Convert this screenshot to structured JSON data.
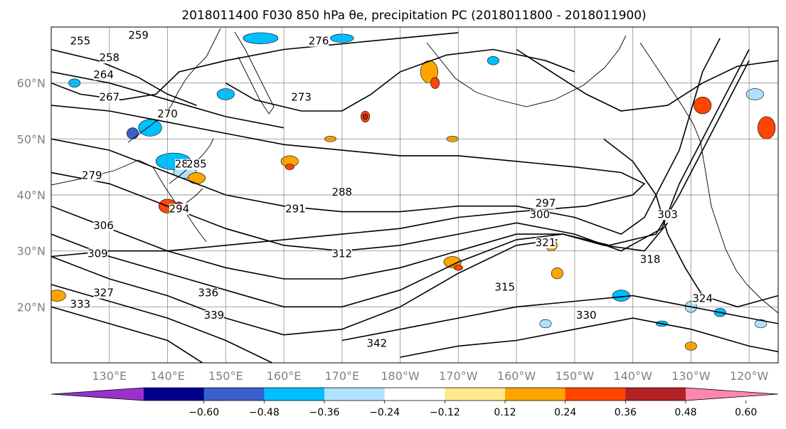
{
  "chart_data": {
    "type": "heatmap",
    "title": "2018011400 F030 850 hPa θe, precipitation PC (2018011800 - 2018011900)",
    "map": {
      "lon_range_east": [
        120,
        245
      ],
      "lat_range": [
        10,
        70
      ],
      "x_ticks": [
        "130°E",
        "140°E",
        "150°E",
        "160°E",
        "170°E",
        "180°W",
        "170°W",
        "160°W",
        "150°W",
        "140°W",
        "130°W",
        "120°W"
      ],
      "y_ticks": [
        "20°N",
        "30°N",
        "40°N",
        "50°N",
        "60°N"
      ],
      "grid": true
    },
    "colorbar": {
      "levels": [
        -0.72,
        -0.6,
        -0.48,
        -0.36,
        -0.24,
        -0.12,
        0.12,
        0.24,
        0.36,
        0.48,
        0.6,
        0.72
      ],
      "tick_labels": [
        "−0.60",
        "−0.48",
        "−0.36",
        "−0.24",
        "−0.12",
        "0.12",
        "0.24",
        "0.36",
        "0.48",
        "0.60"
      ],
      "colors": [
        "#9932cc",
        "#00008b",
        "#3a5fcd",
        "#00bfff",
        "#b0e2ff",
        "#ffffff",
        "#ffe98a",
        "#ffa500",
        "#ff4500",
        "#b22222",
        "#ff86b0"
      ],
      "extend": "both",
      "under_color": "#9932cc",
      "over_color": "#ff86b0"
    },
    "theta_e_contour_labels": [
      "255",
      "259",
      "258",
      "264",
      "267",
      "270",
      "273",
      "276",
      "279",
      "282",
      "285",
      "288",
      "291",
      "294",
      "297",
      "300",
      "303",
      "306",
      "309",
      "312",
      "315",
      "318",
      "321",
      "324",
      "327",
      "330",
      "333",
      "336",
      "339",
      "342"
    ]
  }
}
